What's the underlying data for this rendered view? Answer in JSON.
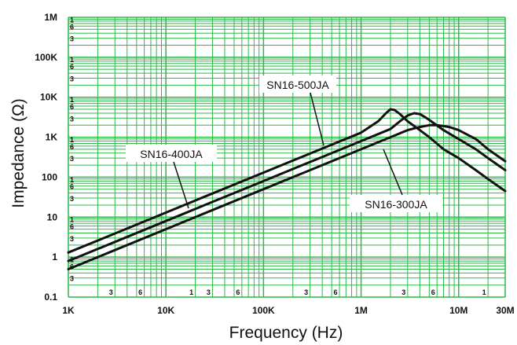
{
  "chart_data": {
    "type": "line",
    "title": "",
    "xlabel": "Frequency (Hz)",
    "ylabel": "Impedance (Ω)",
    "x_scale": "log",
    "y_scale": "log",
    "xlim": [
      1000,
      30000000
    ],
    "ylim": [
      0.1,
      1000000
    ],
    "grid": true,
    "grid_color": "#2db84a",
    "line_color": "#111111",
    "x_major_ticks": [
      {
        "value": 1000,
        "label": "1K"
      },
      {
        "value": 10000,
        "label": "10K"
      },
      {
        "value": 100000,
        "label": "100K"
      },
      {
        "value": 1000000,
        "label": "1M"
      },
      {
        "value": 10000000,
        "label": "10M"
      },
      {
        "value": 30000000,
        "label": "30M"
      }
    ],
    "x_minor_labels": [
      {
        "value": 3000,
        "label": "3"
      },
      {
        "value": 6000,
        "label": "6"
      },
      {
        "value": 30000,
        "label": "3"
      },
      {
        "value": 60000,
        "label": "6"
      },
      {
        "value": 300000,
        "label": "3"
      },
      {
        "value": 600000,
        "label": "6"
      },
      {
        "value": 3000000,
        "label": "3"
      },
      {
        "value": 6000000,
        "label": "6"
      },
      {
        "value": 20000,
        "label": "1"
      },
      {
        "value": 20000000,
        "label": "1"
      }
    ],
    "y_major_ticks": [
      {
        "value": 1000000,
        "label": "1M"
      },
      {
        "value": 100000,
        "label": "100K"
      },
      {
        "value": 10000,
        "label": "10K"
      },
      {
        "value": 1000,
        "label": "1K"
      },
      {
        "value": 100,
        "label": "100"
      },
      {
        "value": 10,
        "label": "10"
      },
      {
        "value": 1,
        "label": "1"
      },
      {
        "value": 0.1,
        "label": "0.1"
      }
    ],
    "y_minor_labels": [
      "1",
      "6",
      "3"
    ],
    "series": [
      {
        "name": "SN16-300JA",
        "x": [
          1000,
          3000,
          10000,
          30000,
          100000,
          300000,
          1000000,
          2000000,
          3000000,
          4000000,
          5000000,
          6000000,
          7000000,
          8000000,
          10000000,
          15000000,
          20000000,
          30000000
        ],
        "y": [
          0.5,
          1.5,
          5,
          15,
          50,
          150,
          500,
          1000,
          1500,
          1800,
          2000,
          2000,
          1900,
          1800,
          1500,
          900,
          500,
          250
        ]
      },
      {
        "name": "SN16-400JA",
        "x": [
          1000,
          3000,
          10000,
          30000,
          100000,
          300000,
          1000000,
          2000000,
          2500000,
          3000000,
          3500000,
          4000000,
          4500000,
          5000000,
          7000000,
          10000000,
          15000000,
          20000000,
          30000000
        ],
        "y": [
          0.8,
          2.4,
          8,
          24,
          80,
          240,
          800,
          1600,
          2500,
          3500,
          4000,
          3800,
          3200,
          2700,
          1500,
          900,
          500,
          300,
          150
        ]
      },
      {
        "name": "SN16-500JA",
        "x": [
          1000,
          3000,
          10000,
          30000,
          100000,
          300000,
          1000000,
          1500000,
          1800000,
          2000000,
          2200000,
          2500000,
          3000000,
          4000000,
          5000000,
          7000000,
          10000000,
          15000000,
          20000000,
          30000000
        ],
        "y": [
          1.3,
          3.9,
          13,
          39,
          130,
          390,
          1300,
          2500,
          4000,
          5000,
          4800,
          3800,
          2500,
          1500,
          1000,
          500,
          300,
          150,
          90,
          45
        ]
      }
    ],
    "annotations": [
      {
        "text": "SN16-500JA",
        "series": "SN16-500JA"
      },
      {
        "text": "SN16-400JA",
        "series": "SN16-400JA"
      },
      {
        "text": "SN16-300JA",
        "series": "SN16-300JA"
      }
    ]
  }
}
